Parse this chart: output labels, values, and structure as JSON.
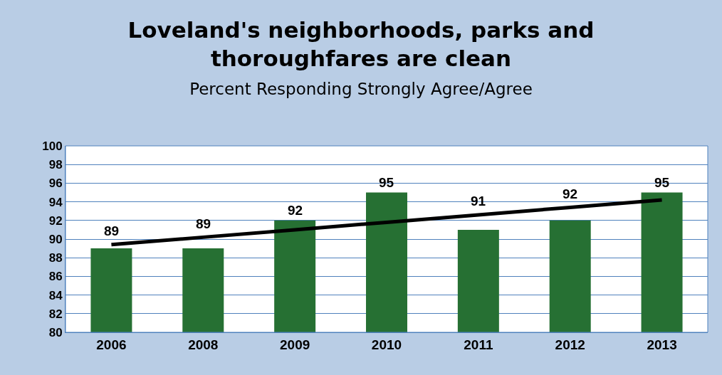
{
  "chart_data": {
    "type": "bar",
    "title": "Loveland's neighborhoods, parks and thoroughfares are clean",
    "subtitle": "Percent Responding Strongly Agree/Agree",
    "categories": [
      "2006",
      "2008",
      "2009",
      "2010",
      "2011",
      "2012",
      "2013"
    ],
    "series": [
      {
        "color": "#267033",
        "values": [
          89,
          89,
          92,
          95,
          91,
          92,
          95
        ],
        "value_labels": [
          "89",
          "89",
          "92",
          "95",
          "91",
          "92",
          "95"
        ]
      },
      {
        "type": "line",
        "color": "#000000",
        "values": [
          89.4,
          90.2,
          91.0,
          91.8,
          92.6,
          93.4,
          94.2
        ]
      }
    ],
    "ylim": [
      80,
      100
    ],
    "yticks": [
      80,
      82,
      84,
      86,
      88,
      90,
      92,
      94,
      96,
      98,
      100
    ],
    "grid": "y",
    "legend": false
  }
}
